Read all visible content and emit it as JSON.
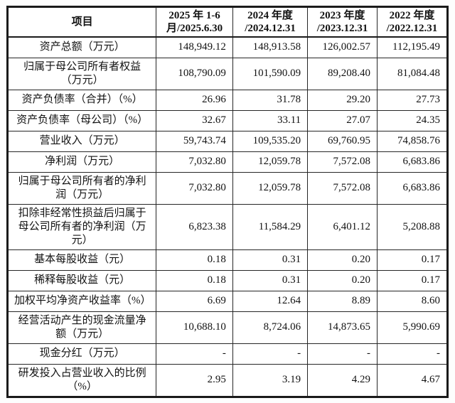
{
  "table": {
    "title_semantic": "主要财务数据摘要表",
    "colors": {
      "border": "#1a1a1a",
      "text": "#121212",
      "background": "#ffffff"
    },
    "header": [
      "项目",
      "2025 年 1-6\n月/2025.6.30",
      "2024 年度\n/2024.12.31",
      "2023 年度\n/2023.12.31",
      "2022 年度\n/2022.12.31"
    ],
    "rows": [
      {
        "label": "资产总额（万元）",
        "values": [
          "148,949.12",
          "148,913.58",
          "126,002.57",
          "112,195.49"
        ]
      },
      {
        "label": "归属于母公司所有者权益（万元）",
        "values": [
          "108,790.09",
          "101,590.09",
          "89,208.40",
          "81,084.48"
        ]
      },
      {
        "label": "资产负债率（合并）（%）",
        "values": [
          "26.96",
          "31.78",
          "29.20",
          "27.73"
        ]
      },
      {
        "label": "资产负债率（母公司）（%）",
        "values": [
          "32.67",
          "33.11",
          "27.07",
          "24.35"
        ]
      },
      {
        "label": "营业收入（万元）",
        "values": [
          "59,743.74",
          "109,535.20",
          "69,760.95",
          "74,858.76"
        ]
      },
      {
        "label": "净利润（万元）",
        "values": [
          "7,032.80",
          "12,059.78",
          "7,572.08",
          "6,683.86"
        ]
      },
      {
        "label": "归属于母公司所有者的净利润（万元）",
        "values": [
          "7,032.80",
          "12,059.78",
          "7,572.08",
          "6,683.86"
        ]
      },
      {
        "label": "扣除非经常性损益后归属于母公司所有者的净利润（万元）",
        "values": [
          "6,823.38",
          "11,584.29",
          "6,401.12",
          "5,208.88"
        ]
      },
      {
        "label": "基本每股收益（元）",
        "values": [
          "0.18",
          "0.31",
          "0.20",
          "0.17"
        ]
      },
      {
        "label": "稀释每股收益（元）",
        "values": [
          "0.18",
          "0.31",
          "0.20",
          "0.17"
        ]
      },
      {
        "label": "加权平均净资产收益率（%）",
        "values": [
          "6.69",
          "12.64",
          "8.89",
          "8.60"
        ]
      },
      {
        "label": "经营活动产生的现金流量净额（万元）",
        "values": [
          "10,688.10",
          "8,724.06",
          "14,873.65",
          "5,990.69"
        ]
      },
      {
        "label": "现金分红（万元）",
        "values": [
          "-",
          "-",
          "-",
          "-"
        ]
      },
      {
        "label": "研发投入占营业收入的比例（%）",
        "values": [
          "2.95",
          "3.19",
          "4.29",
          "4.67"
        ]
      }
    ]
  }
}
